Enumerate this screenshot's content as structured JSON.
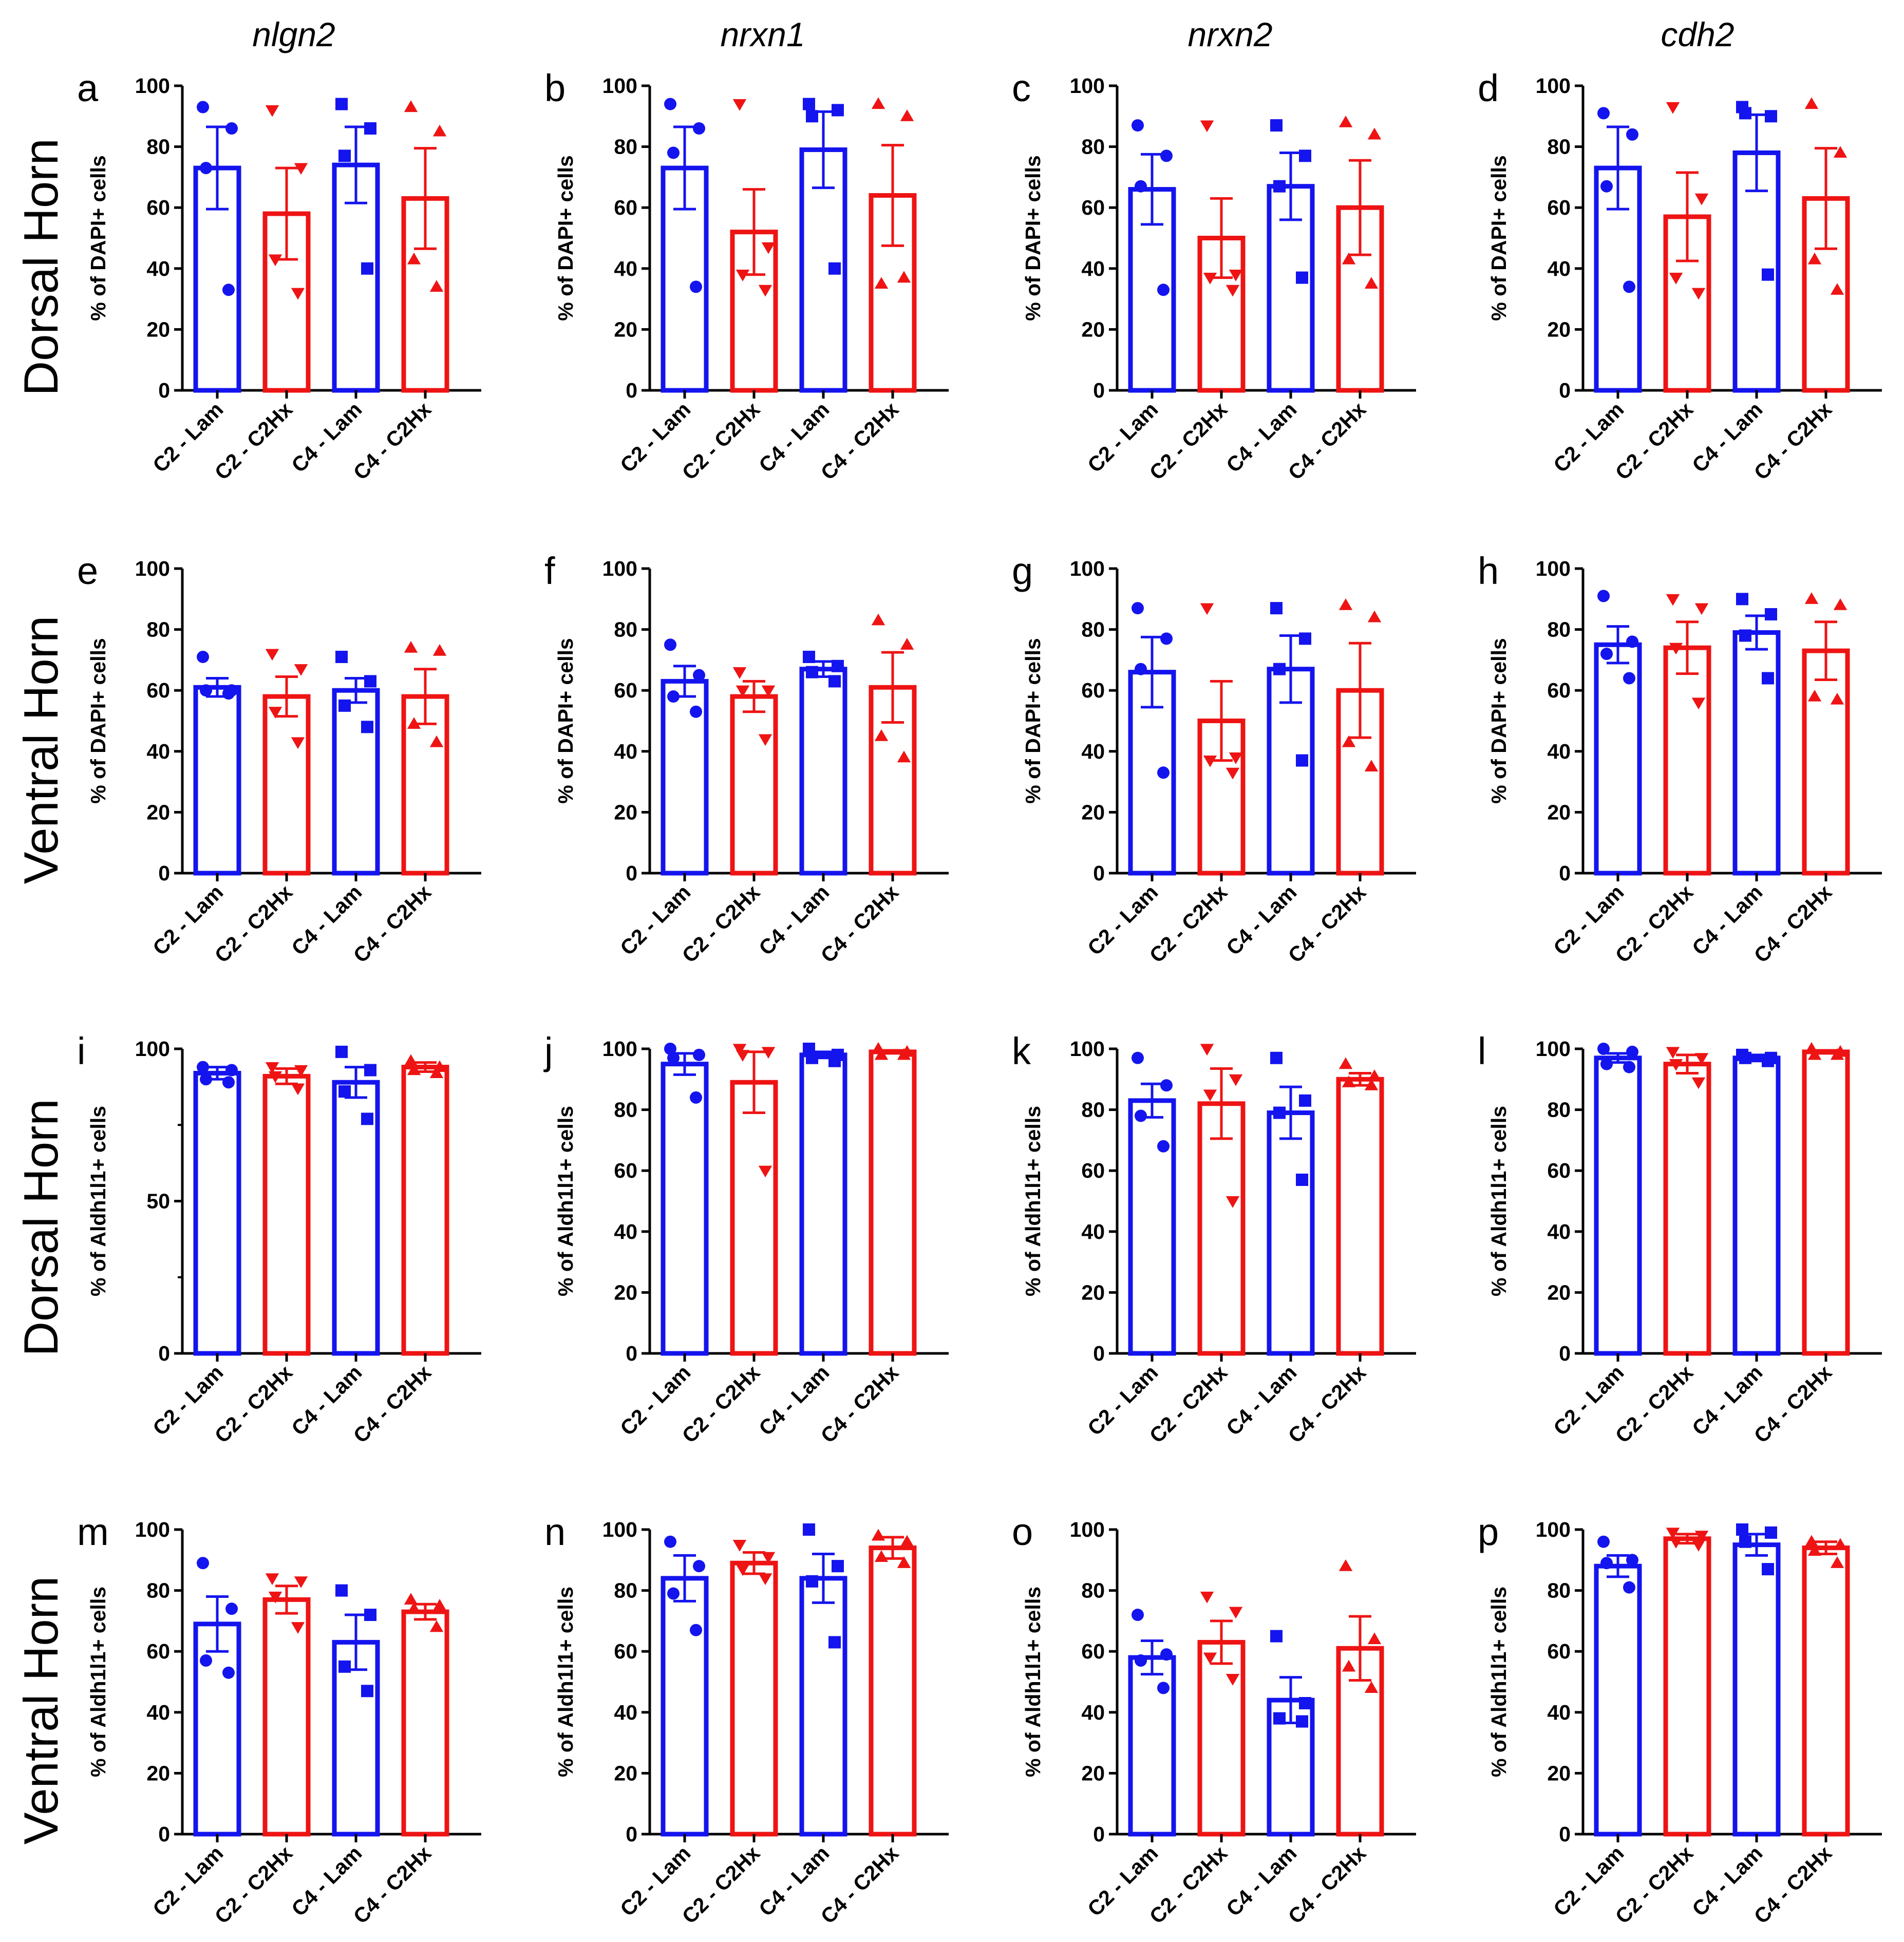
{
  "columns": [
    "nlgn2",
    "nrxn1",
    "nrxn2",
    "cdh2"
  ],
  "rows": [
    "Dorsal Horn",
    "Ventral Horn",
    "Dorsal Horn",
    "Ventral Horn"
  ],
  "colors": {
    "lam": "#1414ee",
    "c2hx": "#ee1414",
    "axis": "#000000"
  },
  "markers": [
    "circle",
    "triangle-down",
    "square",
    "triangle-up"
  ],
  "chart_data": [
    {
      "letter": "a",
      "row": 0,
      "col": 0,
      "type": "bar",
      "ylabel": "% of DAPI+ cells",
      "ylim": [
        0,
        100
      ],
      "yticks": [
        0,
        20,
        40,
        60,
        80,
        100
      ],
      "categories": [
        "C2 - Lam",
        "C2 - C2Hx",
        "C4 - Lam",
        "C4 - C2Hx"
      ],
      "values": [
        73,
        58,
        74,
        63
      ],
      "errors": [
        13.5,
        15,
        12.5,
        16.5
      ],
      "points": [
        [
          93,
          86,
          73,
          33
        ],
        [
          92,
          73,
          43,
          32
        ],
        [
          94,
          86,
          77,
          40
        ],
        [
          93,
          85,
          43,
          34
        ]
      ]
    },
    {
      "letter": "b",
      "row": 0,
      "col": 1,
      "type": "bar",
      "ylabel": "% of DAPI+ cells",
      "ylim": [
        0,
        100
      ],
      "yticks": [
        0,
        20,
        40,
        60,
        80,
        100
      ],
      "categories": [
        "C2 - Lam",
        "C2 - C2Hx",
        "C4 - Lam",
        "C4 - C2Hx"
      ],
      "values": [
        73,
        52,
        79,
        64
      ],
      "errors": [
        13.5,
        14,
        12.5,
        16.5
      ],
      "points": [
        [
          94,
          86,
          78,
          34
        ],
        [
          94,
          47,
          38,
          33
        ],
        [
          94,
          92,
          90,
          40
        ],
        [
          94,
          90,
          35,
          37
        ]
      ]
    },
    {
      "letter": "c",
      "row": 0,
      "col": 2,
      "type": "bar",
      "ylabel": "% of DAPI+ cells",
      "ylim": [
        0,
        100
      ],
      "yticks": [
        0,
        20,
        40,
        60,
        80,
        100
      ],
      "categories": [
        "C2 - Lam",
        "C2 - C2Hx",
        "C4 - Lam",
        "C4 - C2Hx"
      ],
      "values": [
        66,
        50,
        67,
        60
      ],
      "errors": [
        11.5,
        13,
        11,
        15.5
      ],
      "points": [
        [
          87,
          77,
          67,
          33
        ],
        [
          87,
          38,
          37,
          33
        ],
        [
          87,
          77,
          67,
          37
        ],
        [
          88,
          84,
          43,
          35
        ]
      ]
    },
    {
      "letter": "d",
      "row": 0,
      "col": 3,
      "type": "bar",
      "ylabel": "% of DAPI+ cells",
      "ylim": [
        0,
        100
      ],
      "yticks": [
        0,
        20,
        40,
        60,
        80,
        100
      ],
      "categories": [
        "C2 - Lam",
        "C2 - C2Hx",
        "C4 - Lam",
        "C4 - C2Hx"
      ],
      "values": [
        73,
        57,
        78,
        63
      ],
      "errors": [
        13.5,
        14.5,
        12.5,
        16.5
      ],
      "points": [
        [
          91,
          84,
          67,
          34
        ],
        [
          93,
          63,
          37,
          32
        ],
        [
          93,
          90,
          91,
          38
        ],
        [
          94,
          78,
          43,
          33
        ]
      ]
    },
    {
      "letter": "e",
      "row": 1,
      "col": 0,
      "type": "bar",
      "ylabel": "% of DAPI+ cells",
      "ylim": [
        0,
        100
      ],
      "yticks": [
        0,
        20,
        40,
        60,
        80,
        100
      ],
      "categories": [
        "C2 - Lam",
        "C2 - C2Hx",
        "C4 - Lam",
        "C4 - C2Hx"
      ],
      "values": [
        61,
        58,
        60,
        58
      ],
      "errors": [
        3,
        6.5,
        4,
        9
      ],
      "points": [
        [
          71,
          60,
          60,
          59
        ],
        [
          72,
          67,
          53,
          43
        ],
        [
          71,
          63,
          55,
          48
        ],
        [
          74,
          73,
          49,
          43
        ]
      ]
    },
    {
      "letter": "f",
      "row": 1,
      "col": 1,
      "type": "bar",
      "ylabel": "% of DAPI+ cells",
      "ylim": [
        0,
        100
      ],
      "yticks": [
        0,
        20,
        40,
        60,
        80,
        100
      ],
      "categories": [
        "C2 - Lam",
        "C2 - C2Hx",
        "C4 - Lam",
        "C4 - C2Hx"
      ],
      "values": [
        63,
        58,
        67,
        61
      ],
      "errors": [
        5,
        5,
        2.5,
        11.5
      ],
      "points": [
        [
          75,
          65,
          58,
          53
        ],
        [
          66,
          60,
          60,
          44
        ],
        [
          71,
          68,
          66,
          63
        ],
        [
          83,
          75,
          45,
          38
        ]
      ]
    },
    {
      "letter": "g",
      "row": 1,
      "col": 2,
      "type": "bar",
      "ylabel": "% of DAPI+ cells",
      "ylim": [
        0,
        100
      ],
      "yticks": [
        0,
        20,
        40,
        60,
        80,
        100
      ],
      "categories": [
        "C2 - Lam",
        "C2 - C2Hx",
        "C4 - Lam",
        "C4 - C2Hx"
      ],
      "values": [
        66,
        50,
        67,
        60
      ],
      "errors": [
        11.5,
        13,
        11,
        15.5
      ],
      "points": [
        [
          87,
          77,
          67,
          33
        ],
        [
          87,
          38,
          37,
          33
        ],
        [
          87,
          77,
          67,
          37
        ],
        [
          88,
          84,
          43,
          35
        ]
      ]
    },
    {
      "letter": "h",
      "row": 1,
      "col": 3,
      "type": "bar",
      "ylabel": "% of DAPI+ cells",
      "ylim": [
        0,
        100
      ],
      "yticks": [
        0,
        20,
        40,
        60,
        80,
        100
      ],
      "categories": [
        "C2 - Lam",
        "C2 - C2Hx",
        "C4 - Lam",
        "C4 - C2Hx"
      ],
      "values": [
        75,
        74,
        79,
        73
      ],
      "errors": [
        6,
        8.5,
        5.5,
        9.5
      ],
      "points": [
        [
          91,
          76,
          72,
          64
        ],
        [
          90,
          87,
          74,
          56
        ],
        [
          90,
          85,
          78,
          64
        ],
        [
          90,
          88,
          58,
          57
        ]
      ]
    },
    {
      "letter": "i",
      "row": 2,
      "col": 0,
      "type": "bar",
      "ylabel": "% of Aldh1l1+ cells",
      "ylim": [
        0,
        100
      ],
      "yticks": [
        0,
        50,
        100
      ],
      "categories": [
        "C2 - Lam",
        "C2 - C2Hx",
        "C4 - Lam",
        "C4 - C2Hx"
      ],
      "values": [
        92,
        91,
        89,
        94
      ],
      "errors": [
        2,
        2.5,
        5,
        1.5
      ],
      "points": [
        [
          94,
          93,
          90,
          89
        ],
        [
          94,
          93,
          91,
          87
        ],
        [
          99,
          93,
          86,
          77
        ],
        [
          96,
          94,
          93,
          92
        ]
      ]
    },
    {
      "letter": "j",
      "row": 2,
      "col": 1,
      "type": "bar",
      "ylabel": "% of Aldh1l1+ cells",
      "ylim": [
        0,
        100
      ],
      "yticks": [
        0,
        20,
        40,
        60,
        80,
        100
      ],
      "categories": [
        "C2 - Lam",
        "C2 - C2Hx",
        "C4 - Lam",
        "C4 - C2Hx"
      ],
      "values": [
        95,
        89,
        98,
        99
      ],
      "errors": [
        3.5,
        10,
        1,
        0.5
      ],
      "points": [
        [
          100,
          98,
          97,
          84
        ],
        [
          100,
          99,
          98,
          60
        ],
        [
          100,
          98,
          97,
          96
        ],
        [
          100,
          99,
          98,
          98
        ]
      ]
    },
    {
      "letter": "k",
      "row": 2,
      "col": 2,
      "type": "bar",
      "ylabel": "% of Aldh1l1+ cells",
      "ylim": [
        0,
        100
      ],
      "yticks": [
        0,
        20,
        40,
        60,
        80,
        100
      ],
      "categories": [
        "C2 - Lam",
        "C2 - C2Hx",
        "C4 - Lam",
        "C4 - C2Hx"
      ],
      "values": [
        83,
        82,
        79,
        90
      ],
      "errors": [
        5.5,
        11.5,
        8.5,
        2
      ],
      "points": [
        [
          97,
          88,
          78,
          68
        ],
        [
          100,
          90,
          85,
          50
        ],
        [
          97,
          83,
          79,
          57
        ],
        [
          95,
          91,
          89,
          88
        ]
      ]
    },
    {
      "letter": "l",
      "row": 2,
      "col": 3,
      "type": "bar",
      "ylabel": "% of Aldh1l1+ cells",
      "ylim": [
        0,
        100
      ],
      "yticks": [
        0,
        20,
        40,
        60,
        80,
        100
      ],
      "categories": [
        "C2 - Lam",
        "C2 - C2Hx",
        "C4 - Lam",
        "C4 - C2Hx"
      ],
      "values": [
        97,
        95,
        97,
        99
      ],
      "errors": [
        1.5,
        3,
        1,
        0.5
      ],
      "points": [
        [
          100,
          99,
          95,
          94
        ],
        [
          99,
          97,
          95,
          89
        ],
        [
          98,
          97,
          97,
          96
        ],
        [
          100,
          99,
          98,
          98
        ]
      ]
    },
    {
      "letter": "m",
      "row": 3,
      "col": 0,
      "type": "bar",
      "ylabel": "% of Aldh1l1+ cells",
      "ylim": [
        0,
        100
      ],
      "yticks": [
        0,
        20,
        40,
        60,
        80,
        100
      ],
      "categories": [
        "C2 - Lam",
        "C2 - C2Hx",
        "C4 - Lam",
        "C4 - C2Hx"
      ],
      "values": [
        69,
        77,
        63,
        73
      ],
      "errors": [
        9,
        4.5,
        9,
        2.5
      ],
      "points": [
        [
          89,
          74,
          57,
          53
        ],
        [
          84,
          83,
          78,
          68
        ],
        [
          80,
          72,
          55,
          47
        ],
        [
          77,
          75,
          74,
          68
        ]
      ]
    },
    {
      "letter": "n",
      "row": 3,
      "col": 1,
      "type": "bar",
      "ylabel": "% of Aldh1l1+ cells",
      "ylim": [
        0,
        100
      ],
      "yticks": [
        0,
        20,
        40,
        60,
        80,
        100
      ],
      "categories": [
        "C2 - Lam",
        "C2 - C2Hx",
        "C4 - Lam",
        "C4 - C2Hx"
      ],
      "values": [
        84,
        89,
        84,
        94
      ],
      "errors": [
        7.5,
        3.5,
        8,
        3.5
      ],
      "points": [
        [
          96,
          88,
          79,
          67
        ],
        [
          95,
          91,
          87,
          84
        ],
        [
          100,
          88,
          83,
          63
        ],
        [
          98,
          96,
          91,
          89
        ]
      ]
    },
    {
      "letter": "o",
      "row": 3,
      "col": 2,
      "type": "bar",
      "ylabel": "% of Aldh1l1+ cells",
      "ylim": [
        0,
        100
      ],
      "yticks": [
        0,
        20,
        40,
        60,
        80,
        100
      ],
      "categories": [
        "C2 - Lam",
        "C2 - C2Hx",
        "C4 - Lam",
        "C4 - C2Hx"
      ],
      "values": [
        58,
        63,
        44,
        61
      ],
      "errors": [
        5.5,
        7,
        7.5,
        10.5
      ],
      "points": [
        [
          72,
          59,
          57,
          48
        ],
        [
          78,
          73,
          58,
          51
        ],
        [
          65,
          43,
          38,
          37
        ],
        [
          88,
          64,
          55,
          48
        ]
      ]
    },
    {
      "letter": "p",
      "row": 3,
      "col": 3,
      "type": "bar",
      "ylabel": "% of Aldh1l1+ cells",
      "ylim": [
        0,
        100
      ],
      "yticks": [
        0,
        20,
        40,
        60,
        80,
        100
      ],
      "categories": [
        "C2 - Lam",
        "C2 - C2Hx",
        "C4 - Lam",
        "C4 - C2Hx"
      ],
      "values": [
        88,
        97,
        95,
        94
      ],
      "errors": [
        3.5,
        1.5,
        3.5,
        2
      ],
      "points": [
        [
          96,
          90,
          89,
          81
        ],
        [
          99,
          98,
          96,
          95
        ],
        [
          100,
          99,
          96,
          87
        ],
        [
          96,
          95,
          93,
          89
        ]
      ]
    }
  ]
}
